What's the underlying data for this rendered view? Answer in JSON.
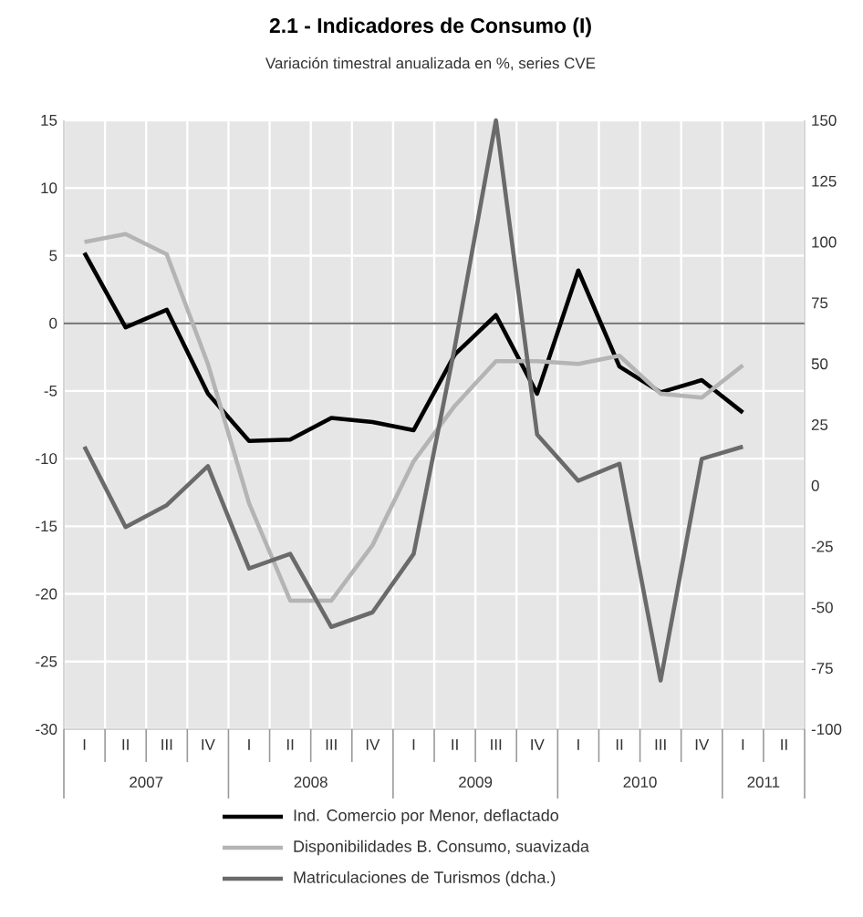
{
  "chart_data": {
    "type": "line",
    "title": "2.1 - Indicadores de Consumo (I)",
    "subtitle": "Variación timestral anualizada en %, series CVE",
    "categories": [
      "I",
      "II",
      "III",
      "IV",
      "I",
      "II",
      "III",
      "IV",
      "I",
      "II",
      "III",
      "IV",
      "I",
      "II",
      "III",
      "IV",
      "I",
      "II"
    ],
    "annotations": [
      "2007",
      "2008",
      "2009",
      "2010",
      "2011"
    ],
    "series": [
      {
        "name": "Ind. Comercio por Menor, deflactado",
        "color": "#000000",
        "values": [
          5.2,
          -0.3,
          1.0,
          -5.2,
          -8.7,
          -8.6,
          -7.0,
          -7.3,
          -7.9,
          -2.3,
          0.6,
          -5.2,
          3.9,
          -3.2,
          -5.1,
          -4.2,
          -6.6,
          null
        ]
      },
      {
        "name": "Disponibilidades B. Consumo, suavizada",
        "color": "#b4b4b4",
        "values": [
          6.0,
          6.6,
          5.1,
          -3.0,
          -13.3,
          -20.5,
          -20.5,
          -16.4,
          -10.2,
          -6.1,
          -2.8,
          -2.8,
          -3.0,
          -2.4,
          -5.2,
          -5.5,
          -3.1,
          null
        ]
      },
      {
        "name": "Matriculaciones de Turismos (dcha.)",
        "color": "#6a6a6a",
        "axis": "y2",
        "values": [
          16,
          -17,
          -8,
          8,
          -34,
          -28,
          -58,
          -52,
          -28,
          57,
          150,
          21,
          2,
          9,
          -80,
          11,
          16,
          null
        ]
      }
    ],
    "ylim": [
      -30,
      15
    ],
    "yticks": [
      -30,
      -25,
      -20,
      -15,
      -10,
      -5,
      0,
      5,
      10,
      15
    ],
    "y2lim": [
      -100,
      150
    ],
    "y2ticks": [
      -100,
      -75,
      -50,
      -25,
      0,
      25,
      50,
      75,
      100,
      125,
      150
    ],
    "ref_lines": [
      {
        "axis": "y",
        "value": 0,
        "color": "#6e6e6e"
      }
    ],
    "grid": true,
    "legend": "bottom"
  }
}
